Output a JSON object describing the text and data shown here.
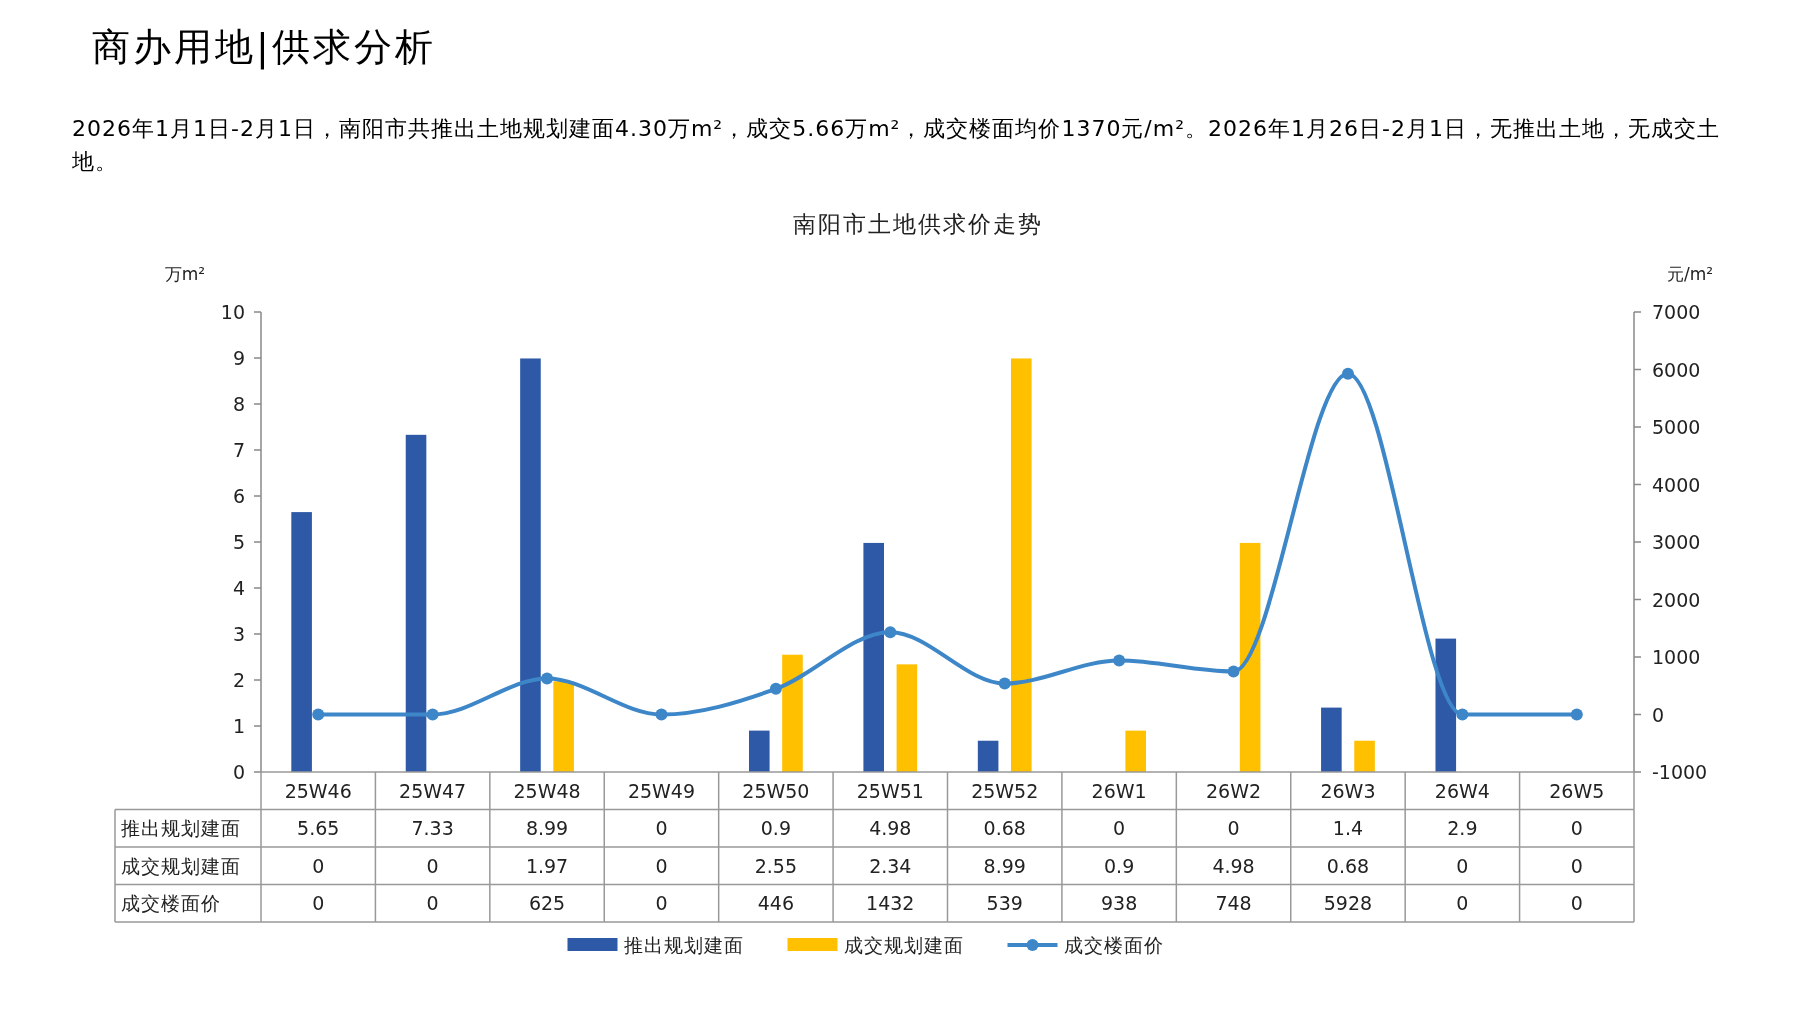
{
  "chart_data": {
    "type": "bar",
    "title": "南阳市土地供求价走势",
    "annotations": [
      "商办用地|供求分析",
      "2026年1月1日-2月1日，南阳市共推出土地规划建面4.30万m²，成交5.66万m²，成交楼面均价1370元/m²。2026年1月26日-2月1日，无推出土地，无成交土地。"
    ],
    "ylabel": "万m²",
    "y2label": "元/m²",
    "categories": [
      "25W46",
      "25W47",
      "25W48",
      "25W49",
      "25W50",
      "25W51",
      "25W52",
      "26W1",
      "26W2",
      "26W3",
      "26W4",
      "26W5"
    ],
    "series": [
      {
        "name": "推出规划建面",
        "color": "#2e59a7",
        "values": [
          5.65,
          7.33,
          8.99,
          0,
          0.9,
          4.98,
          0.68,
          0,
          0,
          1.4,
          2.9,
          0
        ]
      },
      {
        "name": "成交规划建面",
        "color": "#ffc000",
        "values": [
          0,
          0,
          1.97,
          0,
          2.55,
          2.34,
          8.99,
          0.9,
          4.98,
          0.68,
          0,
          0
        ]
      },
      {
        "name": "成交楼面价",
        "type": "line",
        "axis": "y2",
        "color": "#3d87c9",
        "marker": "circle",
        "values": [
          0,
          0,
          625,
          0,
          446,
          1432,
          539,
          938,
          748,
          5928,
          0,
          0
        ]
      }
    ],
    "ylim": [
      0,
      10
    ],
    "yticks": [
      0,
      1,
      2,
      3,
      4,
      5,
      6,
      7,
      8,
      9,
      10
    ],
    "y2lim": [
      -1000,
      7000
    ],
    "y2ticks": [
      -1000,
      0,
      1000,
      2000,
      3000,
      4000,
      5000,
      6000,
      7000
    ],
    "data_labels": true,
    "legend": "bottom",
    "grid": false
  }
}
